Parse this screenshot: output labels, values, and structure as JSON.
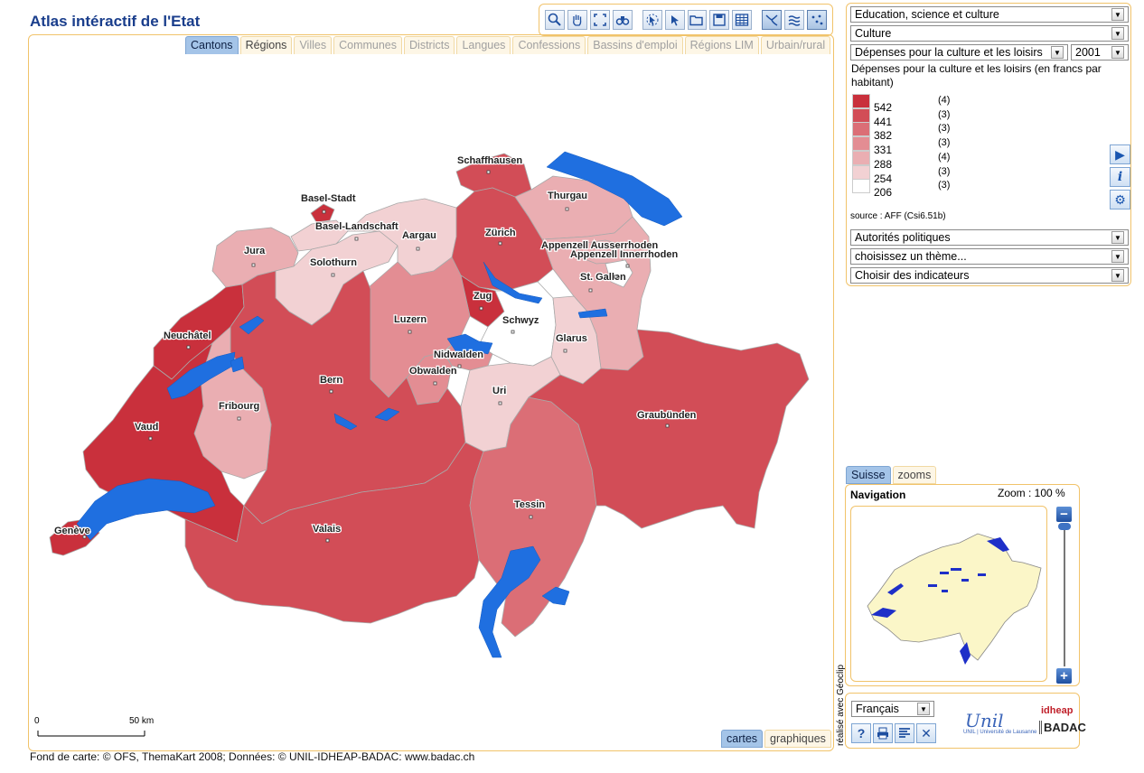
{
  "app_title": "Atlas intéractif de l'Etat",
  "toolbar": {
    "tools": [
      "zoom-icon",
      "pan-hand-icon",
      "full-extent-icon",
      "binoculars-icon",
      "select-arrow-icon",
      "select-arrow-icon",
      "folder-open-icon",
      "save-disk-icon",
      "table-icon",
      "rivers-icon",
      "lakes-icon",
      "points-icon"
    ]
  },
  "map_tabs": [
    {
      "label": "Cantons",
      "state": "active"
    },
    {
      "label": "Régions",
      "state": "enabled"
    },
    {
      "label": "Villes",
      "state": "disabled"
    },
    {
      "label": "Communes",
      "state": "disabled"
    },
    {
      "label": "Districts",
      "state": "disabled"
    },
    {
      "label": "Langues",
      "state": "disabled"
    },
    {
      "label": "Confessions",
      "state": "disabled"
    },
    {
      "label": "Bassins d'emploi",
      "state": "disabled"
    },
    {
      "label": "Régions LIM",
      "state": "disabled"
    },
    {
      "label": "Urbain/rural",
      "state": "disabled"
    }
  ],
  "selectors": {
    "domain": "Education, science et culture",
    "subdomain": "Culture",
    "indicator": "Dépenses pour la culture et les loisirs",
    "year": "2001"
  },
  "legend": {
    "title": "Dépenses pour la culture et les loisirs (en francs par habitant)",
    "classes": [
      {
        "value": "542",
        "count": "(4)",
        "color": "#c9303c"
      },
      {
        "value": "441",
        "count": "(3)",
        "color": "#d24d57"
      },
      {
        "value": "382",
        "count": "(3)",
        "color": "#db6e76"
      },
      {
        "value": "331",
        "count": "(3)",
        "color": "#e38d93"
      },
      {
        "value": "288",
        "count": "(4)",
        "color": "#eaaeb2"
      },
      {
        "value": "254",
        "count": "(3)",
        "color": "#f2d1d3"
      },
      {
        "value": "206",
        "count": "(3)",
        "color": "#ffffff"
      }
    ],
    "source": "source : AFF (Csi6.51b)"
  },
  "lower_selectors": {
    "authorities": "Autorités politiques",
    "theme": "choisissez un thème...",
    "indicators": "Choisir des indicateurs"
  },
  "side_buttons": [
    "play-icon",
    "info-icon",
    "settings-gear-icon"
  ],
  "map_labels": [
    "Schaffhausen",
    "Basel-Stadt",
    "Basel-Landschaft",
    "Thurgau",
    "Aargau",
    "Zürich",
    "Jura",
    "Appenzell Ausserrhoden",
    "Appenzell Innerrhoden",
    "Solothurn",
    "St. Gallen",
    "Zug",
    "Schwyz",
    "Luzern",
    "Neuchâtel",
    "Glarus",
    "Nidwalden",
    "Obwalden",
    "Bern",
    "Uri",
    "Fribourg",
    "Graubünden",
    "Vaud",
    "Tessin",
    "Valais",
    "Genève"
  ],
  "scalebar": {
    "start": "0",
    "end": "50 km"
  },
  "view_tabs": [
    {
      "label": "cartes",
      "state": "active"
    },
    {
      "label": "graphiques",
      "state": "enabled"
    }
  ],
  "footer": "Fond de carte: © OFS, ThemaKart 2008; Données: © UNIL-IDHEAP-BADAC: www.badac.ch",
  "navigation": {
    "tabs": [
      {
        "label": "Suisse",
        "state": "active"
      },
      {
        "label": "zooms",
        "state": "enabled"
      }
    ],
    "title": "Navigation",
    "zoom_label": "Zoom : 100 %",
    "zoom_level": 1.0
  },
  "credit_vertical": "réalisé avec Géoclip",
  "language": "Français",
  "bottom_buttons": [
    "help-icon",
    "print-icon",
    "text-format-icon",
    "close-icon"
  ],
  "logos": {
    "unil": "Unil",
    "unil_sub": "UNIL | Université de Lausanne",
    "idheap": "idheap",
    "badac": "BADAC"
  }
}
